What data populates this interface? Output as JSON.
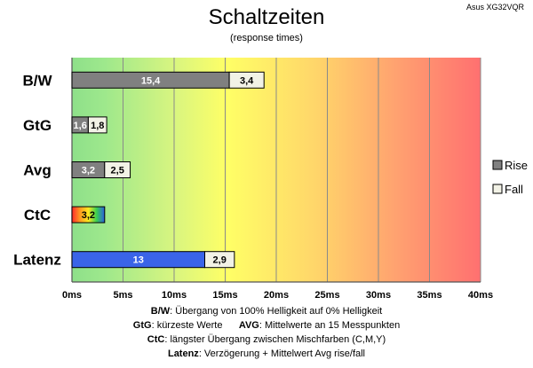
{
  "header": {
    "corner_label": "Asus XG32VQR"
  },
  "chart_data": {
    "type": "bar",
    "orientation": "horizontal",
    "stacked": true,
    "title": "Schaltzeiten",
    "subtitle": "(response times)",
    "categories": [
      "B/W",
      "GtG",
      "Avg",
      "CtC",
      "Latenz"
    ],
    "series": [
      {
        "name": "Rise",
        "values": [
          15.4,
          1.6,
          3.2,
          3.2,
          13
        ],
        "labels": [
          "15,4",
          "1,6",
          "3,2",
          "3,2",
          "13"
        ]
      },
      {
        "name": "Fall",
        "values": [
          3.4,
          1.8,
          2.5,
          null,
          2.9
        ],
        "labels": [
          "3,4",
          "1,8",
          "2,5",
          "",
          "2,9"
        ]
      }
    ],
    "xlim": [
      0,
      40
    ],
    "xticks": [
      "0ms",
      "5ms",
      "10ms",
      "15ms",
      "20ms",
      "25ms",
      "30ms",
      "35ms",
      "40ms"
    ],
    "grid": true,
    "legend_position": "right",
    "colors": {
      "rise": "#808080",
      "fall": "#f2f2e6",
      "latenz_rise": "#3a64e8",
      "bg_green": "#8ee08a",
      "bg_yellow": "#ffff66",
      "bg_red": "#ff7070"
    }
  },
  "footer": {
    "line1": {
      "key": "B/W",
      "text": ":  Übergang von 100% Helligkeit auf 0% Helligkeit"
    },
    "line2": {
      "key1": "GtG",
      "text1": ": kürzeste  Werte",
      "key2": "AVG",
      "text2": ": Mittelwerte  an 15 Messpunkten"
    },
    "line3": {
      "key": "CtC",
      "text": ": längster Übergang  zwischen Mischfarben  (C,M,Y)"
    },
    "line4": {
      "key": "Latenz",
      "text": ": Verzögerung  + Mittelwert Avg rise/fall"
    }
  }
}
